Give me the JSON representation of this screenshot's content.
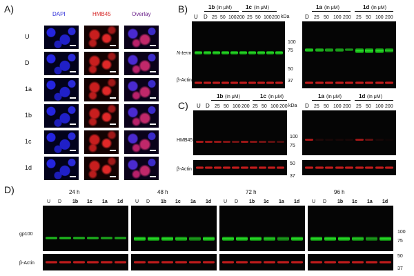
{
  "panel_a": {
    "letter": "A)",
    "columns": [
      {
        "text": "DAPI",
        "color": "#2b2bd9"
      },
      {
        "text": "HMB45",
        "color": "#d62828"
      },
      {
        "text": "Overlay",
        "color": "#6a1f8a"
      }
    ],
    "rows": [
      "U",
      "D",
      "1a",
      "1b",
      "1c",
      "1d"
    ]
  },
  "panel_b": {
    "letter": "B)",
    "left": {
      "u": "U",
      "d": "D",
      "g1": "1b",
      "g2": "1c",
      "unit": "(in μM)",
      "concs": [
        "25",
        "50",
        "100",
        "200",
        "25",
        "50",
        "100",
        "200"
      ]
    },
    "right": {
      "d": "D",
      "g1": "1a",
      "g2": "1d",
      "unit": "(in μM)",
      "concs": [
        "25",
        "50",
        "100",
        "200",
        "25",
        "50",
        "100",
        "200"
      ]
    },
    "kda": "kDa",
    "row_labels": {
      "nterm": "N-term",
      "actin": "β-Actin"
    },
    "markers": [
      "100",
      "75",
      "50",
      "37"
    ]
  },
  "panel_c": {
    "letter": "C)",
    "left": {
      "u": "U",
      "d": "D",
      "g1": "1b",
      "g2": "1c",
      "unit": "(in μM)",
      "concs": [
        "25",
        "50",
        "100",
        "200",
        "25",
        "50",
        "100",
        "200"
      ]
    },
    "right": {
      "d": "D",
      "g1": "1a",
      "g2": "1d",
      "unit": "(in μM)",
      "concs": [
        "25",
        "50",
        "100",
        "200",
        "25",
        "50",
        "100",
        "200"
      ]
    },
    "kda": "kDa",
    "row_labels": {
      "hmb45": "HMB45",
      "actin": "β-Actin"
    },
    "markers": [
      "100",
      "75",
      "50",
      "37"
    ]
  },
  "panel_d": {
    "letter": "D)",
    "timepoints": [
      "24 h",
      "48 h",
      "72 h",
      "96 h"
    ],
    "lanes": [
      "U",
      "D",
      "1b",
      "1c",
      "1a",
      "1d"
    ],
    "row_labels": {
      "gp100": "gp100",
      "actin": "β-Actin"
    },
    "markers": [
      "100",
      "75",
      "50",
      "37"
    ]
  },
  "colors": {
    "dapi": "#2b2bd9",
    "hmb45": "#d62828",
    "overlay": "#6a1f8a",
    "band_green": "#29e629",
    "band_red": "#e02323"
  }
}
